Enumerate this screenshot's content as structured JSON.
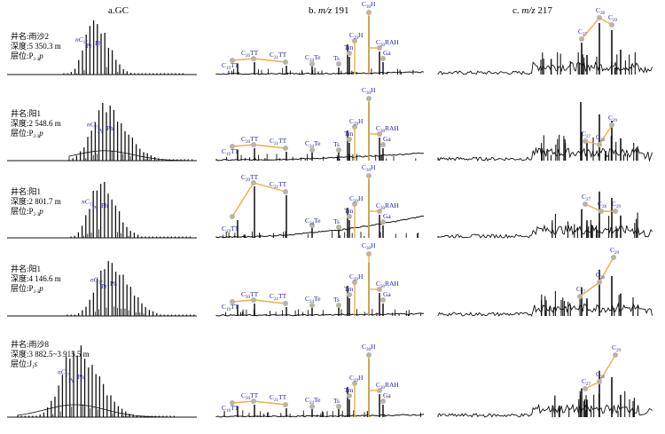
{
  "columns": [
    {
      "prefix": "a.",
      "italic": "",
      "suffix": "GC"
    },
    {
      "prefix": "b. ",
      "italic": "m/z",
      "suffix": " 191"
    },
    {
      "prefix": "c. ",
      "italic": "m/z",
      "suffix": " 217"
    }
  ],
  "info_labels": {
    "well": "井名:",
    "depth": "深度:",
    "layer": "层位:"
  },
  "samples": [
    {
      "well": "雨沙2",
      "depth": "5 350.3 m",
      "layer_main": "P",
      "layer_sub": "2-3",
      "layer_tail": "p"
    },
    {
      "well": "阳1",
      "depth": "2 548.6 m",
      "layer_main": "P",
      "layer_sub": "2-3",
      "layer_tail": "p"
    },
    {
      "well": "阳1",
      "depth": "2 801.7 m",
      "layer_main": "P",
      "layer_sub": "2-3",
      "layer_tail": "p"
    },
    {
      "well": "阳1",
      "depth": "4 146.6 m",
      "layer_main": "P",
      "layer_sub": "2-3",
      "layer_tail": "p"
    },
    {
      "well": "雨沙8",
      "depth": "3 882.5~3 915.5 m",
      "layer_main": "J",
      "layer_sub": "1",
      "layer_tail": "s"
    }
  ],
  "colors": {
    "trace": "#111111",
    "marker": "#b8b4a8",
    "line": "#e8b04a",
    "label": "#2323a6"
  },
  "chart_data": [
    {
      "type": "line",
      "title": "a.GC",
      "peak_labels": [
        "nC17",
        "Pr",
        "Ph"
      ],
      "peak_label_texts": [
        [
          {
            "m": "nC",
            "s": "17"
          },
          {
            "m": "Pr",
            "s": ""
          },
          {
            "m": "Ph",
            "s": ""
          }
        ],
        [
          {
            "m": "nC",
            "s": "17"
          },
          {
            "m": "Pr",
            "s": ""
          },
          {
            "m": "Ph",
            "s": ""
          }
        ],
        [
          {
            "m": "nC",
            "s": "17"
          },
          {
            "m": "Pr",
            "s": ""
          },
          {
            "m": "Ph",
            "s": ""
          }
        ],
        [
          {
            "m": "nC",
            "s": "17"
          },
          {
            "m": "Pr",
            "s": ""
          },
          {
            "m": "Ph",
            "s": ""
          }
        ],
        [
          {
            "m": "nC",
            "s": "17"
          },
          {
            "m": "Pr",
            "s": ""
          },
          {
            "m": "Ph",
            "s": ""
          }
        ]
      ]
    },
    {
      "type": "line",
      "title": "b. m/z 191",
      "rows": [
        {
          "labels": [
            {
              "m": "C",
              "s": "19",
              "t": "TT"
            },
            {
              "m": "C",
              "s": "20",
              "t": "TT"
            },
            {
              "m": "C",
              "s": "21",
              "t": "TT"
            },
            {
              "m": "C",
              "s": "24",
              "t": "Te"
            },
            {
              "m": "Ts",
              "s": "",
              "t": ""
            },
            {
              "m": "Tm",
              "s": "",
              "t": ""
            },
            {
              "m": "C",
              "s": "29",
              "t": "H"
            },
            {
              "m": "C",
              "s": "30",
              "t": "H"
            },
            {
              "m": "C",
              "s": "30",
              "t": "RAH"
            },
            {
              "m": "Ga",
              "s": "",
              "t": ""
            }
          ]
        },
        {
          "labels": [
            {
              "m": "C",
              "s": "19",
              "t": "TT"
            },
            {
              "m": "C",
              "s": "20",
              "t": "TT"
            },
            {
              "m": "C",
              "s": "21",
              "t": "TT"
            },
            {
              "m": "C",
              "s": "24",
              "t": "Te"
            },
            {
              "m": "Ts",
              "s": "",
              "t": ""
            },
            {
              "m": "Tm",
              "s": "",
              "t": ""
            },
            {
              "m": "C",
              "s": "29",
              "t": "H"
            },
            {
              "m": "C",
              "s": "30",
              "t": "H"
            },
            {
              "m": "C",
              "s": "30",
              "t": "RAH"
            },
            {
              "m": "Ga",
              "s": "",
              "t": ""
            }
          ]
        },
        {
          "labels": [
            {
              "m": "C",
              "s": "19",
              "t": "TT"
            },
            {
              "m": "C",
              "s": "20",
              "t": "TT"
            },
            {
              "m": "C",
              "s": "21",
              "t": "TT"
            },
            {
              "m": "C",
              "s": "24",
              "t": "Te"
            },
            {
              "m": "Ts",
              "s": "",
              "t": ""
            },
            {
              "m": "Tm",
              "s": "",
              "t": ""
            },
            {
              "m": "C",
              "s": "29",
              "t": "H"
            },
            {
              "m": "C",
              "s": "30",
              "t": "H"
            },
            {
              "m": "C",
              "s": "30",
              "t": "RAH"
            },
            {
              "m": "Ga",
              "s": "",
              "t": ""
            }
          ]
        },
        {
          "labels": [
            {
              "m": "C",
              "s": "19",
              "t": "TT"
            },
            {
              "m": "C",
              "s": "20",
              "t": "TT"
            },
            {
              "m": "C",
              "s": "21",
              "t": "TT"
            },
            {
              "m": "C",
              "s": "24",
              "t": "Te"
            },
            {
              "m": "Ts",
              "s": "",
              "t": ""
            },
            {
              "m": "Tm",
              "s": "",
              "t": ""
            },
            {
              "m": "C",
              "s": "29",
              "t": "H"
            },
            {
              "m": "C",
              "s": "30",
              "t": "H"
            },
            {
              "m": "C",
              "s": "30",
              "t": "RAH"
            },
            {
              "m": "Ga",
              "s": "",
              "t": ""
            }
          ]
        },
        {
          "labels": [
            {
              "m": "C",
              "s": "19",
              "t": "TT"
            },
            {
              "m": "C",
              "s": "20",
              "t": "TT"
            },
            {
              "m": "C",
              "s": "21",
              "t": "TT"
            },
            {
              "m": "C",
              "s": "24",
              "t": "Te"
            },
            {
              "m": "Ts",
              "s": "",
              "t": ""
            },
            {
              "m": "Tm",
              "s": "",
              "t": ""
            },
            {
              "m": "C",
              "s": "29",
              "t": "H"
            },
            {
              "m": "C",
              "s": "30",
              "t": "H"
            },
            {
              "m": "C",
              "s": "30",
              "t": "RAH"
            },
            {
              "m": "Ga",
              "s": "",
              "t": ""
            }
          ]
        }
      ]
    },
    {
      "type": "line",
      "title": "c. m/z 217",
      "rows": [
        {
          "labels": [
            {
              "m": "C",
              "s": "27"
            },
            {
              "m": "C",
              "s": "28"
            },
            {
              "m": "C",
              "s": "29"
            }
          ]
        },
        {
          "labels": [
            {
              "m": "C",
              "s": "27"
            },
            {
              "m": "C",
              "s": "28"
            },
            {
              "m": "C",
              "s": "29"
            }
          ]
        },
        {
          "labels": [
            {
              "m": "C",
              "s": "27"
            },
            {
              "m": "C",
              "s": "28"
            },
            {
              "m": "C",
              "s": "29"
            }
          ]
        },
        {
          "labels": [
            {
              "m": "C",
              "s": "27"
            },
            {
              "m": "C",
              "s": "28"
            },
            {
              "m": "C",
              "s": "29"
            }
          ]
        },
        {
          "labels": [
            {
              "m": "C",
              "s": "27"
            },
            {
              "m": "C",
              "s": "28"
            },
            {
              "m": "C",
              "s": "29"
            }
          ]
        }
      ]
    }
  ]
}
